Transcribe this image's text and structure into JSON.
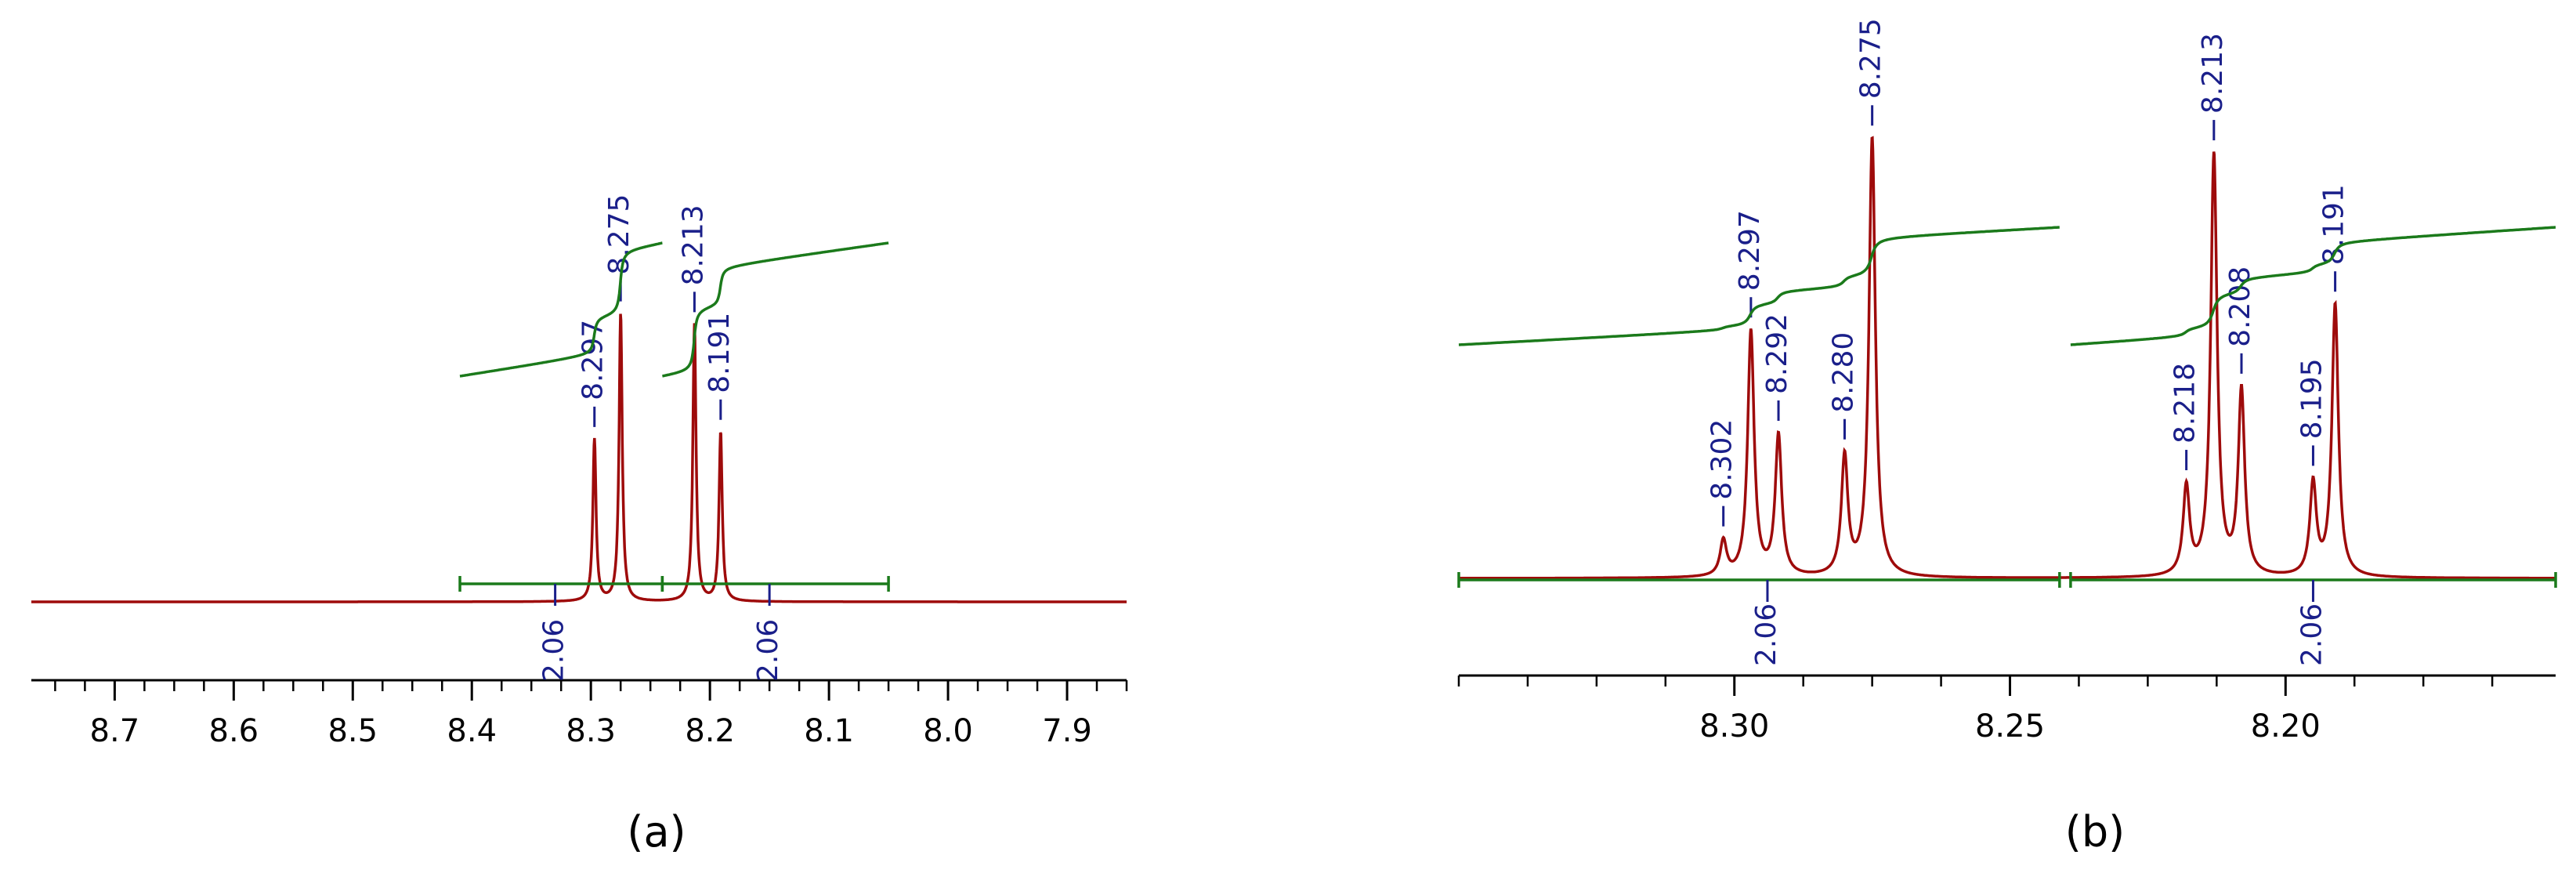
{
  "colors": {
    "spectrum": "#9e0b0b",
    "integral": "#1b7a1b",
    "peak_label": "#1a1f8a",
    "axis": "#000000"
  },
  "chart_data": [
    {
      "id": "a",
      "type": "line",
      "caption": "(a)",
      "xlim": [
        8.77,
        7.85
      ],
      "x_reversed": true,
      "ticks": [
        8.7,
        8.6,
        8.5,
        8.4,
        8.3,
        8.2,
        8.1,
        8.0,
        7.9
      ],
      "tick_labels": [
        "8.7",
        "8.6",
        "8.5",
        "8.4",
        "8.3",
        "8.2",
        "8.1",
        "8.0",
        "7.9"
      ],
      "peaks": [
        {
          "x": 8.297,
          "label": "8.297",
          "height": 0.45
        },
        {
          "x": 8.275,
          "label": "8.275",
          "height": 0.8
        },
        {
          "x": 8.213,
          "label": "8.213",
          "height": 0.77
        },
        {
          "x": 8.191,
          "label": "8.191",
          "height": 0.47
        }
      ],
      "integrals": [
        {
          "from": 8.41,
          "to": 8.24,
          "value": "2.06",
          "label_x": 8.33
        },
        {
          "from": 8.24,
          "to": 8.05,
          "value": "2.06",
          "label_x": 8.15
        }
      ]
    },
    {
      "id": "b",
      "type": "line",
      "caption": "(b)",
      "xlim": [
        8.35,
        8.151
      ],
      "x_reversed": true,
      "ticks": [
        8.3,
        8.25,
        8.2
      ],
      "tick_labels": [
        "8.30",
        "8.25",
        "8.20"
      ],
      "peaks": [
        {
          "x": 8.302,
          "label": "8.302",
          "height": 0.08
        },
        {
          "x": 8.297,
          "label": "8.297",
          "height": 0.56
        },
        {
          "x": 8.292,
          "label": "8.292",
          "height": 0.32
        },
        {
          "x": 8.28,
          "label": "8.280",
          "height": 0.27
        },
        {
          "x": 8.275,
          "label": "8.275",
          "height": 1.0
        },
        {
          "x": 8.218,
          "label": "8.218",
          "height": 0.2
        },
        {
          "x": 8.213,
          "label": "8.213",
          "height": 0.96
        },
        {
          "x": 8.208,
          "label": "8.208",
          "height": 0.42
        },
        {
          "x": 8.195,
          "label": "8.195",
          "height": 0.21
        },
        {
          "x": 8.191,
          "label": "8.191",
          "height": 0.62
        }
      ],
      "integrals": [
        {
          "from": 8.35,
          "to": 8.241,
          "value": "2.06",
          "label_x": 8.294
        },
        {
          "from": 8.239,
          "to": 8.151,
          "value": "2.06",
          "label_x": 8.195
        }
      ]
    }
  ]
}
